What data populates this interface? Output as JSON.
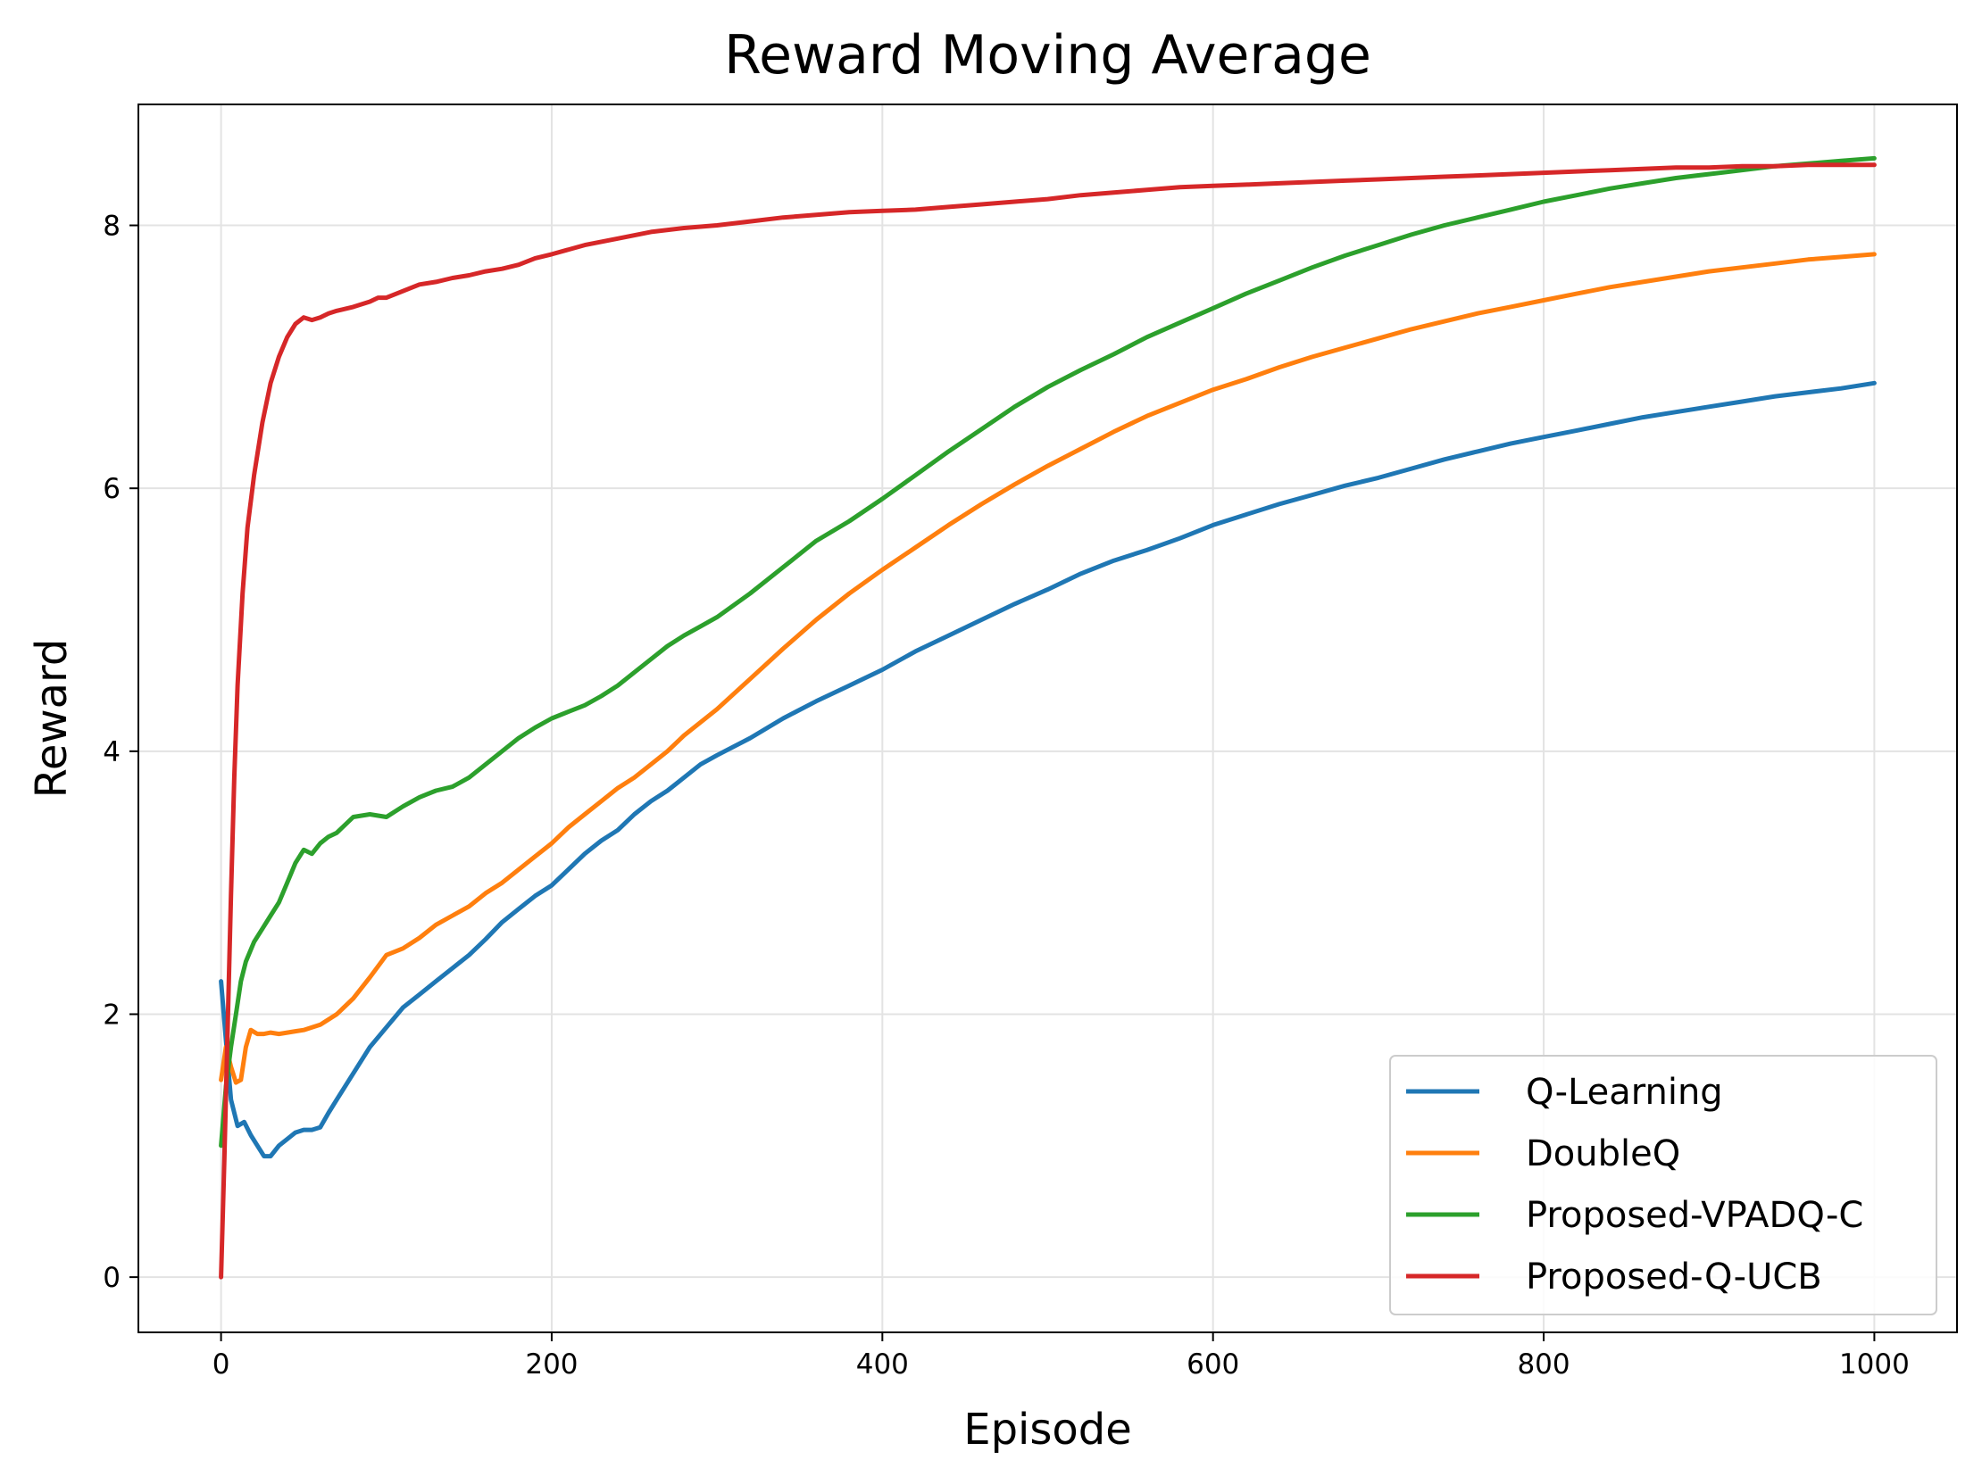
{
  "chart_data": {
    "type": "line",
    "title": "Reward Moving Average",
    "xlabel": "Episode",
    "ylabel": "Reward",
    "xlim": [
      -50,
      1050
    ],
    "ylim": [
      -0.42,
      8.92
    ],
    "xticks": [
      0,
      200,
      400,
      600,
      800,
      1000
    ],
    "yticks": [
      0,
      2,
      4,
      6,
      8
    ],
    "grid": true,
    "legend_position": "bottom-right",
    "series": [
      {
        "name": "Q-Learning",
        "color": "#1f77b4",
        "x": [
          0,
          3,
          6,
          10,
          14,
          18,
          22,
          26,
          30,
          35,
          40,
          45,
          50,
          55,
          60,
          65,
          70,
          80,
          90,
          100,
          110,
          120,
          130,
          140,
          150,
          160,
          170,
          180,
          190,
          200,
          210,
          220,
          230,
          240,
          250,
          260,
          270,
          280,
          290,
          300,
          320,
          340,
          360,
          380,
          400,
          420,
          440,
          460,
          480,
          500,
          520,
          540,
          560,
          580,
          600,
          620,
          640,
          660,
          680,
          700,
          720,
          740,
          760,
          780,
          800,
          820,
          840,
          860,
          880,
          900,
          920,
          940,
          960,
          980,
          1000
        ],
        "values": [
          2.25,
          1.8,
          1.35,
          1.15,
          1.18,
          1.08,
          1.0,
          0.92,
          0.92,
          1.0,
          1.05,
          1.1,
          1.12,
          1.12,
          1.14,
          1.25,
          1.35,
          1.55,
          1.75,
          1.9,
          2.05,
          2.15,
          2.25,
          2.35,
          2.45,
          2.57,
          2.7,
          2.8,
          2.9,
          2.98,
          3.1,
          3.22,
          3.32,
          3.4,
          3.52,
          3.62,
          3.7,
          3.8,
          3.9,
          3.97,
          4.1,
          4.25,
          4.38,
          4.5,
          4.62,
          4.76,
          4.88,
          5.0,
          5.12,
          5.23,
          5.35,
          5.45,
          5.53,
          5.62,
          5.72,
          5.8,
          5.88,
          5.95,
          6.02,
          6.08,
          6.15,
          6.22,
          6.28,
          6.34,
          6.39,
          6.44,
          6.49,
          6.54,
          6.58,
          6.62,
          6.66,
          6.7,
          6.73,
          6.76,
          6.8
        ]
      },
      {
        "name": "DoubleQ",
        "color": "#ff7f0e",
        "x": [
          0,
          3,
          6,
          9,
          12,
          15,
          18,
          22,
          26,
          30,
          35,
          40,
          45,
          50,
          55,
          60,
          70,
          80,
          90,
          100,
          110,
          120,
          130,
          140,
          150,
          160,
          170,
          180,
          190,
          200,
          210,
          220,
          230,
          240,
          250,
          260,
          270,
          280,
          290,
          300,
          320,
          340,
          360,
          380,
          400,
          420,
          440,
          460,
          480,
          500,
          520,
          540,
          560,
          580,
          600,
          620,
          640,
          660,
          680,
          700,
          720,
          740,
          760,
          780,
          800,
          820,
          840,
          860,
          880,
          900,
          920,
          940,
          960,
          980,
          1000
        ],
        "values": [
          1.5,
          1.75,
          1.6,
          1.48,
          1.5,
          1.75,
          1.88,
          1.85,
          1.85,
          1.86,
          1.85,
          1.86,
          1.87,
          1.88,
          1.9,
          1.92,
          2.0,
          2.12,
          2.28,
          2.45,
          2.5,
          2.58,
          2.68,
          2.75,
          2.82,
          2.92,
          3.0,
          3.1,
          3.2,
          3.3,
          3.42,
          3.52,
          3.62,
          3.72,
          3.8,
          3.9,
          4.0,
          4.12,
          4.22,
          4.32,
          4.55,
          4.78,
          5.0,
          5.2,
          5.38,
          5.55,
          5.72,
          5.88,
          6.03,
          6.17,
          6.3,
          6.43,
          6.55,
          6.65,
          6.75,
          6.83,
          6.92,
          7.0,
          7.07,
          7.14,
          7.21,
          7.27,
          7.33,
          7.38,
          7.43,
          7.48,
          7.53,
          7.57,
          7.61,
          7.65,
          7.68,
          7.71,
          7.74,
          7.76,
          7.78
        ]
      },
      {
        "name": "Proposed-VPADQ-C",
        "color": "#2ca02c",
        "x": [
          0,
          3,
          6,
          9,
          12,
          15,
          20,
          25,
          30,
          35,
          40,
          45,
          50,
          55,
          60,
          65,
          70,
          80,
          90,
          100,
          110,
          120,
          130,
          140,
          150,
          160,
          170,
          180,
          190,
          200,
          210,
          220,
          230,
          240,
          250,
          260,
          270,
          280,
          290,
          300,
          320,
          340,
          360,
          380,
          400,
          420,
          440,
          460,
          480,
          500,
          520,
          540,
          560,
          580,
          600,
          620,
          640,
          660,
          680,
          700,
          720,
          740,
          760,
          780,
          800,
          820,
          840,
          860,
          880,
          900,
          920,
          940,
          960,
          980,
          1000
        ],
        "values": [
          1.0,
          1.45,
          1.75,
          2.0,
          2.25,
          2.4,
          2.55,
          2.65,
          2.75,
          2.85,
          3.0,
          3.15,
          3.25,
          3.22,
          3.3,
          3.35,
          3.38,
          3.5,
          3.52,
          3.5,
          3.58,
          3.65,
          3.7,
          3.73,
          3.8,
          3.9,
          4.0,
          4.1,
          4.18,
          4.25,
          4.3,
          4.35,
          4.42,
          4.5,
          4.6,
          4.7,
          4.8,
          4.88,
          4.95,
          5.02,
          5.2,
          5.4,
          5.6,
          5.75,
          5.92,
          6.1,
          6.28,
          6.45,
          6.62,
          6.77,
          6.9,
          7.02,
          7.15,
          7.26,
          7.37,
          7.48,
          7.58,
          7.68,
          7.77,
          7.85,
          7.93,
          8.0,
          8.06,
          8.12,
          8.18,
          8.23,
          8.28,
          8.32,
          8.36,
          8.39,
          8.42,
          8.45,
          8.47,
          8.49,
          8.51
        ]
      },
      {
        "name": "Proposed-Q-UCB",
        "color": "#d62728",
        "x": [
          0,
          2,
          4,
          6,
          8,
          10,
          13,
          16,
          20,
          25,
          30,
          35,
          40,
          45,
          50,
          55,
          60,
          65,
          70,
          80,
          90,
          95,
          100,
          110,
          120,
          130,
          140,
          150,
          160,
          170,
          180,
          190,
          200,
          220,
          240,
          260,
          280,
          300,
          320,
          340,
          360,
          380,
          400,
          420,
          440,
          460,
          480,
          500,
          520,
          540,
          560,
          580,
          600,
          620,
          640,
          660,
          680,
          700,
          720,
          740,
          760,
          780,
          800,
          820,
          840,
          860,
          880,
          900,
          920,
          940,
          960,
          980,
          1000
        ],
        "values": [
          0.0,
          0.9,
          1.9,
          2.9,
          3.8,
          4.5,
          5.2,
          5.7,
          6.1,
          6.5,
          6.8,
          7.0,
          7.15,
          7.25,
          7.3,
          7.28,
          7.3,
          7.33,
          7.35,
          7.38,
          7.42,
          7.45,
          7.45,
          7.5,
          7.55,
          7.57,
          7.6,
          7.62,
          7.65,
          7.67,
          7.7,
          7.75,
          7.78,
          7.85,
          7.9,
          7.95,
          7.98,
          8.0,
          8.03,
          8.06,
          8.08,
          8.1,
          8.11,
          8.12,
          8.14,
          8.16,
          8.18,
          8.2,
          8.23,
          8.25,
          8.27,
          8.29,
          8.3,
          8.31,
          8.32,
          8.33,
          8.34,
          8.35,
          8.36,
          8.37,
          8.38,
          8.39,
          8.4,
          8.41,
          8.42,
          8.43,
          8.44,
          8.44,
          8.45,
          8.45,
          8.46,
          8.46,
          8.46
        ]
      }
    ]
  }
}
